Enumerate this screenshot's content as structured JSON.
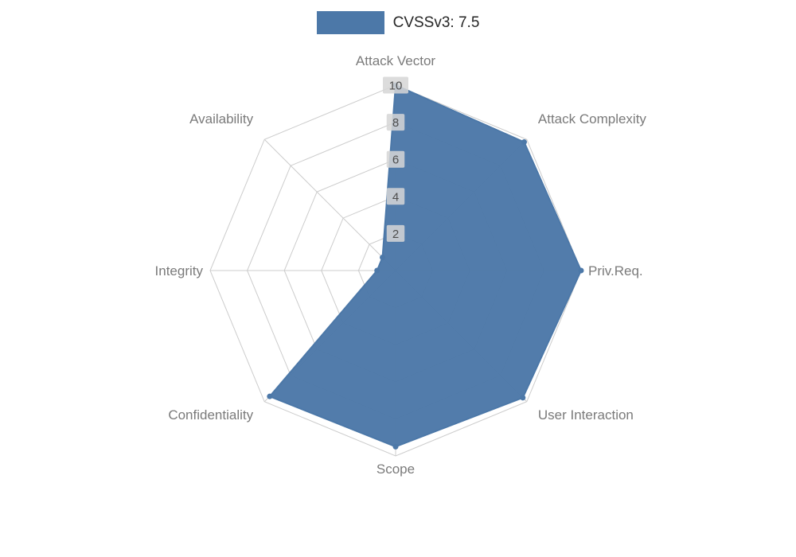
{
  "legend": {
    "label": "CVSSv3: 7.5",
    "swatch_color": "#4c78a8"
  },
  "chart_data": {
    "type": "radar",
    "title": "CVSSv3: 7.5",
    "categories": [
      "Attack Vector",
      "Attack Complexity",
      "Priv.Req.",
      "User Interaction",
      "Scope",
      "Confidentiality",
      "Integrity",
      "Availability"
    ],
    "series": [
      {
        "name": "CVSSv3: 7.5",
        "values": [
          10,
          9.8,
          10,
          9.7,
          9.5,
          9.6,
          1,
          1
        ]
      }
    ],
    "ticks": [
      2,
      4,
      6,
      8,
      10
    ],
    "range": [
      0,
      10
    ],
    "grid": "on",
    "legend_position": "top-center",
    "colors": {
      "fill": "#4c78a8",
      "stroke": "#4c78a8",
      "grid": "#cccccc",
      "axis_label": "#7a7a7a",
      "tick_label": "#4d4d4d",
      "tick_box": "#d6d6d6"
    }
  }
}
